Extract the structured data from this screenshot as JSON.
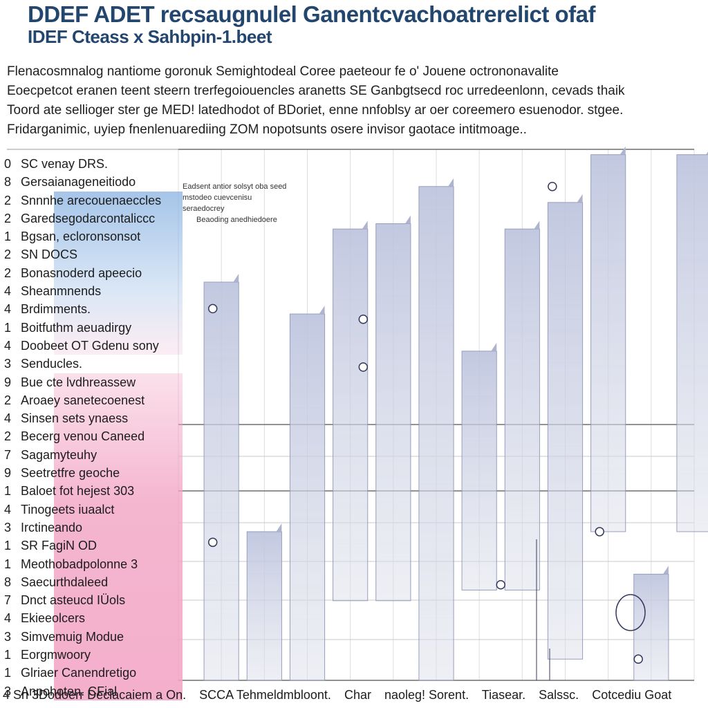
{
  "title": {
    "line1": "DDEF ADET recsaugnulel Ganentcvachoatrerelict ofaf",
    "line2": "IDEF Cteass x Sahbpin-1.beet"
  },
  "description": [
    "Flenacosmnalog nantiome goronuk Semightodeal  Coree paeteour fe o' Jouene octrononavalite",
    "Eoecpetcot eranen teent steern trerfegoiouencles aranetts SE Ganbgtsecd roc urredeenlonn, cevads thaik",
    "Toord ate sellioger ster ge MED! latedhodot of BDoriet, enne nnfoblsy ar oer coreemero esuenodor. stgee.",
    "Fridarganimic, uyiep fnenlenuarediing ZOM nopotsunts osere invisor gaotace intitmoage.."
  ],
  "annotation": [
    "Eadsent antior solsyt oba seed",
    "mstodeo cuevcenisu",
    "seraedocrey",
    "Beaoding anedhiedoere"
  ],
  "footer": [
    "4 Sn 3Dodoerr Deciacaiem a On.",
    "SCCA Tehmeldmbloont.",
    "Char",
    "naoleg! Sorent.",
    "Tiasear.",
    "Salssc.",
    "Cotcediu Goat"
  ],
  "colors": {
    "title": "#23466f",
    "bar_fill": "#c9cde0",
    "bar_stroke": "#8d94b3",
    "band_blue": "#8fb6e3",
    "band_pink": "#f2a3c3",
    "grid": "#6f6f6f"
  },
  "chart_data": {
    "type": "bar",
    "rows": [
      {
        "n": "0",
        "label": "SC venay DRS."
      },
      {
        "n": "8",
        "label": "Gersaianageneitiodo"
      },
      {
        "n": "2",
        "label": "Snnnhe arecouenaeccles"
      },
      {
        "n": "2",
        "label": "Garedsegodarcontaliccc"
      },
      {
        "n": "1",
        "label": "Bgsan, ecloronsonsot"
      },
      {
        "n": "2",
        "label": "SN DOCS"
      },
      {
        "n": "2",
        "label": "Bonasnoderd apeecio"
      },
      {
        "n": "4",
        "label": "Sheanmnends"
      },
      {
        "n": "4",
        "label": "Brdimments."
      },
      {
        "n": "1",
        "label": "Boitfuthm aeuadirgy"
      },
      {
        "n": "4",
        "label": "Doobeet OT Gdenu sony"
      },
      {
        "n": "3",
        "label": "Senducles."
      },
      {
        "n": "9",
        "label": "Bue cte lvdhreassew"
      },
      {
        "n": "2",
        "label": "Aroaey sanetecoenest"
      },
      {
        "n": "4",
        "label": "Sinsen sets ynaess"
      },
      {
        "n": "2",
        "label": "Becerg venou Caneed"
      },
      {
        "n": "7",
        "label": "Sagamyteuhy"
      },
      {
        "n": "9",
        "label": "Seetretfre geoche"
      },
      {
        "n": "1",
        "label": "Baloet fot hejest 303"
      },
      {
        "n": "4",
        "label": "Tinogeets iuaalct"
      },
      {
        "n": "3",
        "label": "Irctineando"
      },
      {
        "n": "1",
        "label": "SR FagiN OD"
      },
      {
        "n": "1",
        "label": "Meothobadpolonne 3"
      },
      {
        "n": "8",
        "label": "Saecurthdaleed"
      },
      {
        "n": "7",
        "label": "Dnct asteucd IÜols"
      },
      {
        "n": "4",
        "label": "Ekieeolcers"
      },
      {
        "n": "3",
        "label": "Simvemuig Modue"
      },
      {
        "n": "1",
        "label": "Eorgmwoory"
      },
      {
        "n": "1",
        "label": "Glriaer Canendretigo"
      },
      {
        "n": "3",
        "label": "Anpohoten. CFial"
      }
    ],
    "bars": [
      {
        "x": 1,
        "top": 0.75,
        "bottom": 0.0
      },
      {
        "x": 2,
        "top": 0.28,
        "bottom": 0.0
      },
      {
        "x": 3,
        "top": 0.69,
        "bottom": 0.0
      },
      {
        "x": 4,
        "top": 0.85,
        "bottom": 0.15
      },
      {
        "x": 5,
        "top": 0.86,
        "bottom": 0.15
      },
      {
        "x": 6,
        "top": 0.93,
        "bottom": 0.0
      },
      {
        "x": 7,
        "top": 0.62,
        "bottom": 0.17
      },
      {
        "x": 8,
        "top": 0.85,
        "bottom": 0.17
      },
      {
        "x": 9,
        "top": 0.9,
        "bottom": 0.04
      },
      {
        "x": 10,
        "top": 0.99,
        "bottom": 0.28
      },
      {
        "x": 11,
        "top": 0.2,
        "bottom": 0.0
      },
      {
        "x": 12,
        "top": 0.99,
        "bottom": 0.28
      }
    ],
    "points": [
      {
        "x": 1.3,
        "y": 0.7
      },
      {
        "x": 1.3,
        "y": 0.26
      },
      {
        "x": 4.8,
        "y": 0.68
      },
      {
        "x": 4.8,
        "y": 0.59
      },
      {
        "x": 9.2,
        "y": 0.93
      },
      {
        "x": 8.0,
        "y": 0.18
      },
      {
        "x": 10.3,
        "y": 0.28
      },
      {
        "x": 11.2,
        "y": 0.04
      }
    ],
    "grid": true
  }
}
